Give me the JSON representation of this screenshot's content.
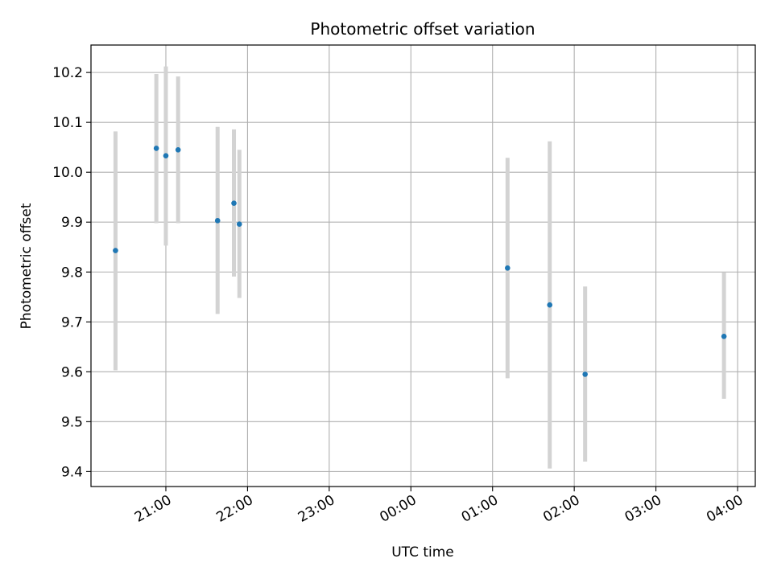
{
  "chart_data": {
    "type": "scatter",
    "title": "Photometric offset variation",
    "xlabel": "UTC time",
    "ylabel": "Photometric offset",
    "x_tick_labels": [
      "21:00",
      "22:00",
      "23:00",
      "00:00",
      "01:00",
      "02:00",
      "03:00",
      "04:00"
    ],
    "x_tick_values": [
      "21:00",
      "22:00",
      "23:00",
      "00:00",
      "01:00",
      "02:00",
      "03:00",
      "04:00"
    ],
    "y_ticks": [
      9.4,
      9.5,
      9.6,
      9.7,
      9.8,
      9.9,
      10.0,
      10.1,
      10.2
    ],
    "y_tick_labels": [
      "9.4",
      "9.5",
      "9.6",
      "9.7",
      "9.8",
      "9.9",
      "10.0",
      "10.1",
      "10.2"
    ],
    "xlim": [
      "20:05",
      "04:13"
    ],
    "ylim": [
      9.37,
      10.255
    ],
    "grid": true,
    "point_color": "#1f77b4",
    "errorbar_color": "#d3d3d3",
    "points": [
      {
        "x": "20:23",
        "y": 9.843,
        "err_low": 9.603,
        "err_high": 10.082
      },
      {
        "x": "20:53",
        "y": 10.048,
        "err_low": 9.898,
        "err_high": 10.197
      },
      {
        "x": "21:00",
        "y": 10.033,
        "err_low": 9.853,
        "err_high": 10.212
      },
      {
        "x": "21:09",
        "y": 10.045,
        "err_low": 9.898,
        "err_high": 10.192
      },
      {
        "x": "21:38",
        "y": 9.903,
        "err_low": 9.716,
        "err_high": 10.091
      },
      {
        "x": "21:50",
        "y": 9.938,
        "err_low": 9.791,
        "err_high": 10.086
      },
      {
        "x": "21:54",
        "y": 9.896,
        "err_low": 9.748,
        "err_high": 10.045
      },
      {
        "x": "01:11",
        "y": 9.808,
        "err_low": 9.587,
        "err_high": 10.029
      },
      {
        "x": "01:42",
        "y": 9.734,
        "err_low": 9.406,
        "err_high": 10.062
      },
      {
        "x": "02:08",
        "y": 9.595,
        "err_low": 9.42,
        "err_high": 9.771
      },
      {
        "x": "03:50",
        "y": 9.671,
        "err_low": 9.546,
        "err_high": 9.799
      }
    ]
  }
}
